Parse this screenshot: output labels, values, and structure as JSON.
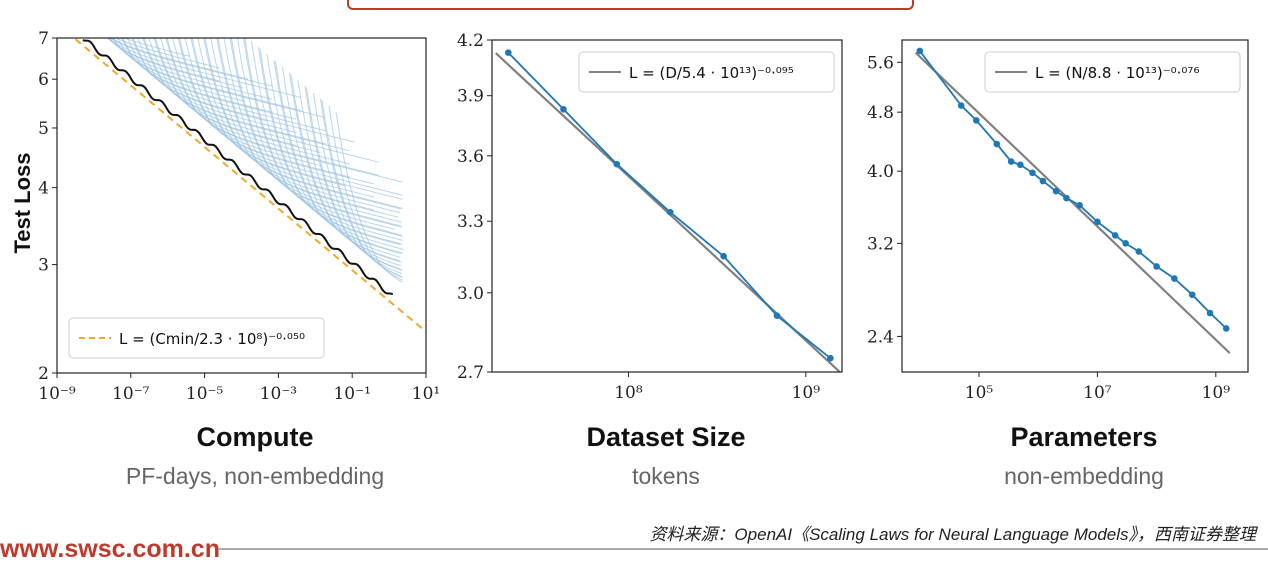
{
  "ylabel": "Test Loss",
  "site": "www.swsc.com.cn",
  "source": "资料来源：OpenAI《Scaling Laws for Neural Language Models》，西南证券整理",
  "colors": {
    "fit": "#808080",
    "data": "#1f77b4",
    "compute_fit": "#f5a623",
    "frontier": "#111111",
    "curves": "#9cc3e4",
    "accent": "#c0392b"
  },
  "chart_data": [
    {
      "type": "line",
      "title": "Compute",
      "subtitle": "PF-days, non-embedding",
      "xscale": "log",
      "yscale": "log",
      "xlim_exp": [
        -9,
        1
      ],
      "ylim": [
        2,
        7
      ],
      "xticks": [
        "10⁻⁹",
        "10⁻⁷",
        "10⁻⁵",
        "10⁻³",
        "10⁻¹",
        "10¹"
      ],
      "yticks": [
        2,
        3,
        4,
        5,
        6,
        7
      ],
      "legend": "L = (Cmin/2.3 · 10⁸)⁻⁰·⁰⁵⁰",
      "legend_position": "bottom-left",
      "fit": {
        "coef": 230000000,
        "exp": -0.05
      },
      "frontier_x_exp": [
        -8.3,
        0.1
      ],
      "series_note": "many individual training curves (light blue) above the compute-efficient frontier (black)"
    },
    {
      "type": "line",
      "title": "Dataset Size",
      "subtitle": "tokens",
      "xscale": "log",
      "yscale": "log",
      "xlim": [
        17000000,
        1600000000
      ],
      "ylim": [
        2.7,
        4.2
      ],
      "xticks": [
        "10⁸",
        "10⁹"
      ],
      "xtick_values": [
        100000000,
        1000000000
      ],
      "yticks": [
        2.7,
        3.0,
        3.3,
        3.6,
        3.9,
        4.2
      ],
      "legend": "L = (D/5.4 · 10¹³)⁻⁰·⁰⁹⁵",
      "legend_position": "top-right",
      "fit": {
        "coef": 54000000000000,
        "exp": -0.095
      },
      "points": [
        {
          "x": 21000000,
          "y": 4.13
        },
        {
          "x": 43000000,
          "y": 3.83
        },
        {
          "x": 86000000,
          "y": 3.56
        },
        {
          "x": 172000000,
          "y": 3.34
        },
        {
          "x": 344000000,
          "y": 3.15
        },
        {
          "x": 688000000,
          "y": 2.91
        },
        {
          "x": 1376000000,
          "y": 2.75
        }
      ]
    },
    {
      "type": "line",
      "title": "Parameters",
      "subtitle": "non-embedding",
      "xscale": "log",
      "yscale": "log",
      "xlim": [
        5000,
        3500000000
      ],
      "ylim": [
        2.15,
        6.0
      ],
      "xticks": [
        "10⁵",
        "10⁷",
        "10⁹"
      ],
      "xtick_values": [
        100000,
        10000000,
        1000000000
      ],
      "yticks": [
        2.4,
        3.2,
        4.0,
        4.8,
        5.6
      ],
      "legend": "L = (N/8.8 · 10¹³)⁻⁰·⁰⁷⁶",
      "legend_position": "top-right",
      "fit": {
        "coef": 88000000000000,
        "exp": -0.076
      },
      "points": [
        {
          "x": 10000,
          "y": 5.8
        },
        {
          "x": 50000,
          "y": 4.9
        },
        {
          "x": 90000,
          "y": 4.68
        },
        {
          "x": 200000,
          "y": 4.35
        },
        {
          "x": 350000,
          "y": 4.12
        },
        {
          "x": 500000,
          "y": 4.08
        },
        {
          "x": 800000,
          "y": 3.98
        },
        {
          "x": 1200000,
          "y": 3.88
        },
        {
          "x": 2000000,
          "y": 3.76
        },
        {
          "x": 3000000,
          "y": 3.68
        },
        {
          "x": 5000000,
          "y": 3.6
        },
        {
          "x": 10000000,
          "y": 3.42
        },
        {
          "x": 20000000,
          "y": 3.28
        },
        {
          "x": 30000000,
          "y": 3.2
        },
        {
          "x": 50000000,
          "y": 3.12
        },
        {
          "x": 100000000,
          "y": 2.98
        },
        {
          "x": 200000000,
          "y": 2.87
        },
        {
          "x": 400000000,
          "y": 2.73
        },
        {
          "x": 800000000,
          "y": 2.58
        },
        {
          "x": 1500000000,
          "y": 2.46
        }
      ]
    }
  ]
}
